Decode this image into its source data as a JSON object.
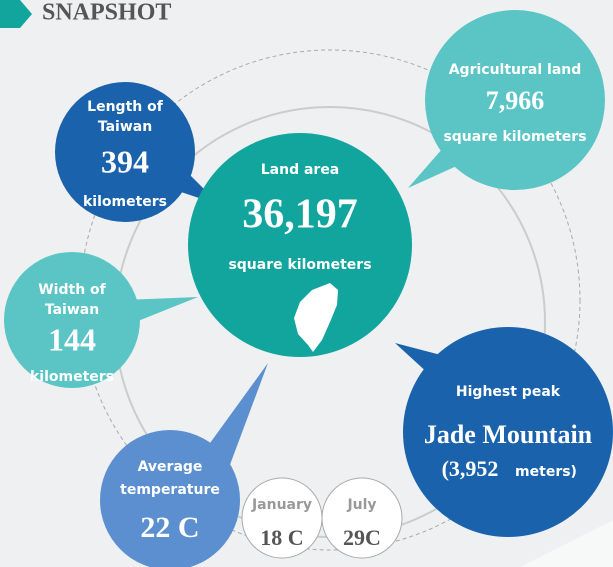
{
  "title": "SNAPSHOT",
  "bubbles": {
    "land_area": {
      "label": "Land area",
      "value": "36,197",
      "unit": "square kilometers"
    },
    "length": {
      "label": [
        "Length of",
        "Taiwan"
      ],
      "value": "394",
      "unit": "kilometers"
    },
    "agricultural": {
      "label": "Agricultural land",
      "value": "7,966",
      "unit": "square kilometers"
    },
    "width": {
      "label": [
        "Width of",
        "Taiwan"
      ],
      "value": "144",
      "unit": "kilometers"
    },
    "peak": {
      "label": "Highest peak",
      "value": "Jade Mountain",
      "height": "(3,952",
      "unit": "meters)"
    },
    "temperature": {
      "label": [
        "Average",
        "temperature"
      ],
      "value": "22 C"
    },
    "january": {
      "label": "January",
      "value": "18 C"
    },
    "july": {
      "label": "July",
      "value": "29C"
    }
  }
}
